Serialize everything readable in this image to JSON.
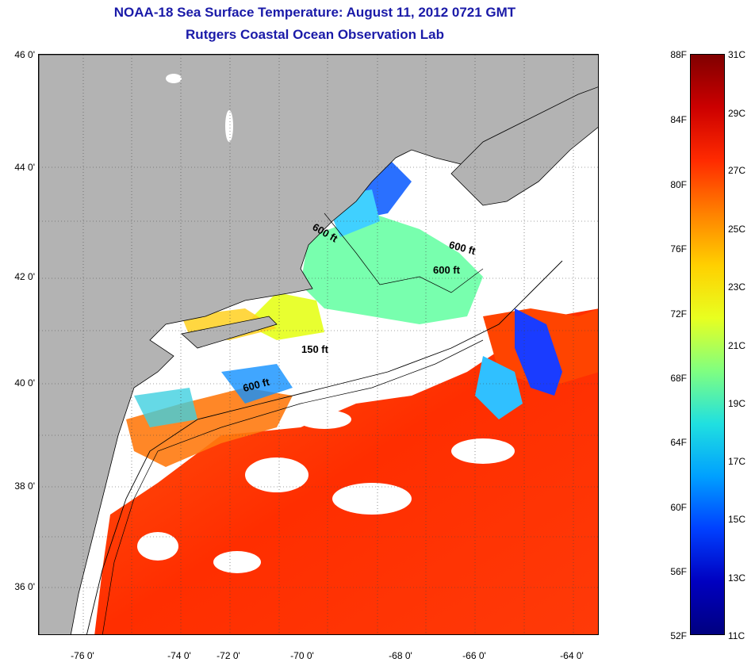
{
  "title_line1": "NOAA-18 Sea Surface Temperature:  August 11, 2012 0721 GMT",
  "title_line2": "Rutgers Coastal Ocean Observation Lab",
  "lat_labels": [
    "46 0'",
    "44 0'",
    "42 0'",
    "40 0'",
    "38 0'",
    "36 0'"
  ],
  "lon_labels": [
    "-76 0'",
    "-74 0'",
    "-72 0'",
    "-70 0'",
    "-68 0'",
    "-66 0'",
    "-64 0'"
  ],
  "isobath_labels": [
    "600 ft",
    "600 ft",
    "600 ft",
    "150 ft",
    "600 ft"
  ],
  "colorbar": {
    "fahrenheit_labels": [
      "88F",
      "84F",
      "80F",
      "76F",
      "72F",
      "68F",
      "64F",
      "60F",
      "56F",
      "52F"
    ],
    "celsius_labels": [
      "31C",
      "29C",
      "27C",
      "25C",
      "23C",
      "21C",
      "19C",
      "17C",
      "15C",
      "13C",
      "11C"
    ],
    "colors": [
      "#800000",
      "#cc0000",
      "#ff2a00",
      "#ff8000",
      "#ffd000",
      "#e8ff20",
      "#80ff80",
      "#20e0e0",
      "#00a0ff",
      "#0040ff",
      "#0000c0",
      "#000080"
    ]
  },
  "colors": {
    "land": "#b3b3b3",
    "cloud": "#ffffff",
    "title": "#1a1aa8"
  }
}
